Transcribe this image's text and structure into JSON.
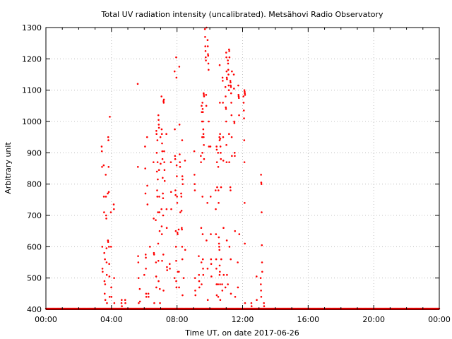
{
  "chart_data": {
    "type": "scatter",
    "title": "Total UV radiation intensity (uncalibrated). Metsähovi Radio Observatory",
    "xlabel": "Time UT, on date 2017-06-26",
    "ylabel": "Arbitrary unit",
    "xlim": [
      0,
      24
    ],
    "ylim": [
      400,
      1300
    ],
    "x_ticks": [
      {
        "value": 0,
        "label": "00:00"
      },
      {
        "value": 4,
        "label": "04:00"
      },
      {
        "value": 8,
        "label": "08:00"
      },
      {
        "value": 12,
        "label": "12:00"
      },
      {
        "value": 16,
        "label": "16:00"
      },
      {
        "value": 20,
        "label": "20:00"
      },
      {
        "value": 24,
        "label": "00:00"
      }
    ],
    "y_ticks": [
      {
        "value": 400,
        "label": "400"
      },
      {
        "value": 500,
        "label": "500"
      },
      {
        "value": 600,
        "label": "600"
      },
      {
        "value": 700,
        "label": "700"
      },
      {
        "value": 800,
        "label": "800"
      },
      {
        "value": 900,
        "label": "900"
      },
      {
        "value": 1000,
        "label": "1000"
      },
      {
        "value": 1100,
        "label": "1100"
      },
      {
        "value": 1200,
        "label": "1200"
      },
      {
        "value": 1300,
        "label": "1300"
      }
    ],
    "grid": true,
    "color": "#ff0000",
    "baseline": {
      "value": 400,
      "from_hour": 0,
      "to_hour": 24,
      "step_minutes": 3
    },
    "groups": [
      {
        "hour": 3.45,
        "values": [
          920,
          905,
          855,
          600,
          530,
          520
        ]
      },
      {
        "hour": 3.55,
        "values": [
          860,
          760,
          710,
          580,
          490,
          450
        ]
      },
      {
        "hour": 3.65,
        "values": [
          830,
          760,
          700,
          690,
          595,
          560,
          480,
          430
        ]
      },
      {
        "hour": 3.75,
        "values": [
          770,
          620,
          615,
          550,
          510,
          420
        ]
      },
      {
        "hour": 3.85,
        "values": [
          1015,
          950,
          940,
          855,
          775,
          600,
          545,
          505,
          440
        ]
      },
      {
        "hour": 4.0,
        "values": [
          710,
          600,
          470,
          440
        ]
      },
      {
        "hour": 4.15,
        "values": [
          735,
          720,
          500,
          420
        ]
      },
      {
        "hour": 4.6,
        "values": [
          420,
          430,
          410
        ]
      },
      {
        "hour": 4.8,
        "values": [
          430,
          420
        ]
      },
      {
        "hour": 5.65,
        "values": [
          1120,
          855,
          570,
          550,
          500,
          420
        ]
      },
      {
        "hour": 5.75,
        "values": [
          465,
          425
        ]
      },
      {
        "hour": 6.05,
        "values": [
          920,
          850,
          770,
          575,
          565,
          510
        ]
      },
      {
        "hour": 6.15,
        "values": [
          950,
          795,
          735,
          530,
          450,
          440
        ]
      },
      {
        "hour": 6.3,
        "values": [
          600,
          450,
          440
        ]
      },
      {
        "hour": 6.6,
        "values": [
          870,
          690,
          580,
          575,
          420
        ]
      },
      {
        "hour": 6.75,
        "values": [
          970,
          960,
          900,
          840,
          780,
          760,
          685,
          550,
          505,
          470
        ]
      },
      {
        "hour": 6.85,
        "values": [
          1020,
          1005,
          990,
          980,
          940,
          870,
          815,
          710,
          610,
          555,
          490
        ]
      },
      {
        "hour": 6.95,
        "values": [
          950,
          865,
          845,
          760,
          710,
          650,
          465,
          420
        ]
      },
      {
        "hour": 7.1,
        "values": [
          1080,
          975,
          960,
          930,
          905,
          880,
          820,
          770,
          755,
          720,
          665,
          640,
          555
        ]
      },
      {
        "hour": 7.2,
        "values": [
          1065,
          1060,
          1070,
          905,
          870,
          845,
          810,
          700,
          575,
          460
        ]
      },
      {
        "hour": 7.35,
        "values": [
          960,
          720,
          660,
          535,
          525
        ]
      },
      {
        "hour": 7.6,
        "values": [
          870,
          775,
          720,
          545,
          530
        ]
      },
      {
        "hour": 7.9,
        "values": [
          1205,
          1160,
          975,
          890,
          880,
          780,
          765,
          650,
          600,
          555,
          500
        ]
      },
      {
        "hour": 8.0,
        "values": [
          1140,
          860,
          825,
          760,
          740,
          645,
          640,
          520,
          490,
          470
        ]
      },
      {
        "hour": 8.15,
        "values": [
          1175,
          990,
          895,
          870,
          855,
          710,
          655,
          520,
          470
        ]
      },
      {
        "hour": 8.3,
        "values": [
          940,
          825,
          815,
          800,
          770,
          760,
          715,
          660,
          655,
          600,
          560,
          445
        ]
      },
      {
        "hour": 8.45,
        "values": [
          875,
          590,
          500
        ]
      },
      {
        "hour": 9.1,
        "values": [
          905,
          830,
          800,
          780,
          500,
          460,
          445
        ]
      },
      {
        "hour": 9.35,
        "values": [
          570,
          510,
          490,
          470
        ]
      },
      {
        "hour": 9.5,
        "values": [
          1050,
          1030,
          1000,
          950,
          900,
          890,
          870,
          660,
          550,
          480
        ]
      },
      {
        "hour": 9.6,
        "values": [
          1090,
          1085,
          1080,
          1060,
          1040,
          1030,
          1000,
          975,
          960,
          950,
          925,
          880,
          760,
          640,
          560,
          530,
          510
        ]
      },
      {
        "hour": 9.75,
        "values": [
          1300,
          1295,
          1270,
          1240,
          1225,
          1205,
          1195,
          1085,
          1050,
          620
        ]
      },
      {
        "hour": 9.9,
        "values": [
          1260,
          1240,
          1215,
          1210,
          1185,
          1165,
          1000,
          920,
          740,
          530,
          430
        ]
      },
      {
        "hour": 10.05,
        "values": [
          920,
          760,
          640,
          560,
          545,
          505
        ]
      },
      {
        "hour": 10.4,
        "values": [
          920,
          910,
          870,
          790,
          780,
          720,
          640,
          560,
          530,
          480,
          445
        ]
      },
      {
        "hour": 10.55,
        "values": [
          950,
          940,
          900,
          855,
          780,
          740,
          630,
          610,
          600,
          590,
          510,
          480,
          440
        ]
      },
      {
        "hour": 10.65,
        "values": [
          1180,
          1060,
          960,
          945,
          920,
          900,
          880,
          790,
          560,
          540,
          520,
          480,
          430
        ]
      },
      {
        "hour": 10.8,
        "values": [
          1140,
          1130,
          1060,
          950,
          875,
          660,
          510,
          480,
          460
        ]
      },
      {
        "hour": 11.0,
        "values": [
          1220,
          1205,
          1160,
          1140,
          1135,
          1110,
          1080,
          1045,
          1040,
          1000,
          925,
          870,
          620,
          510,
          470
        ]
      },
      {
        "hour": 11.15,
        "values": [
          1230,
          1225,
          1205,
          1195,
          1185,
          1165,
          1150,
          1115,
          1100,
          960,
          870,
          600,
          480
        ]
      },
      {
        "hour": 11.3,
        "values": [
          1160,
          1130,
          1125,
          1115,
          1110,
          1090,
          1060,
          1020,
          950,
          890,
          790,
          780,
          560,
          450
        ]
      },
      {
        "hour": 11.5,
        "values": [
          1150,
          1105,
          1000,
          995,
          900,
          890,
          650,
          440
        ]
      },
      {
        "hour": 11.75,
        "values": [
          1115,
          1085,
          1080,
          1075,
          1020,
          640,
          550,
          470
        ]
      },
      {
        "hour": 12.1,
        "values": [
          1100,
          1095,
          1090,
          1085,
          1080,
          1060,
          1035,
          1010,
          940,
          870,
          740,
          610,
          420
        ]
      },
      {
        "hour": 12.5,
        "values": [
          420,
          410
        ]
      },
      {
        "hour": 12.9,
        "values": [
          505,
          430
        ]
      },
      {
        "hour": 13.15,
        "values": [
          830,
          805,
          800,
          710,
          605,
          550,
          520,
          500,
          480,
          460,
          440
        ]
      },
      {
        "hour": 13.3,
        "values": [
          420,
          410
        ]
      }
    ]
  }
}
